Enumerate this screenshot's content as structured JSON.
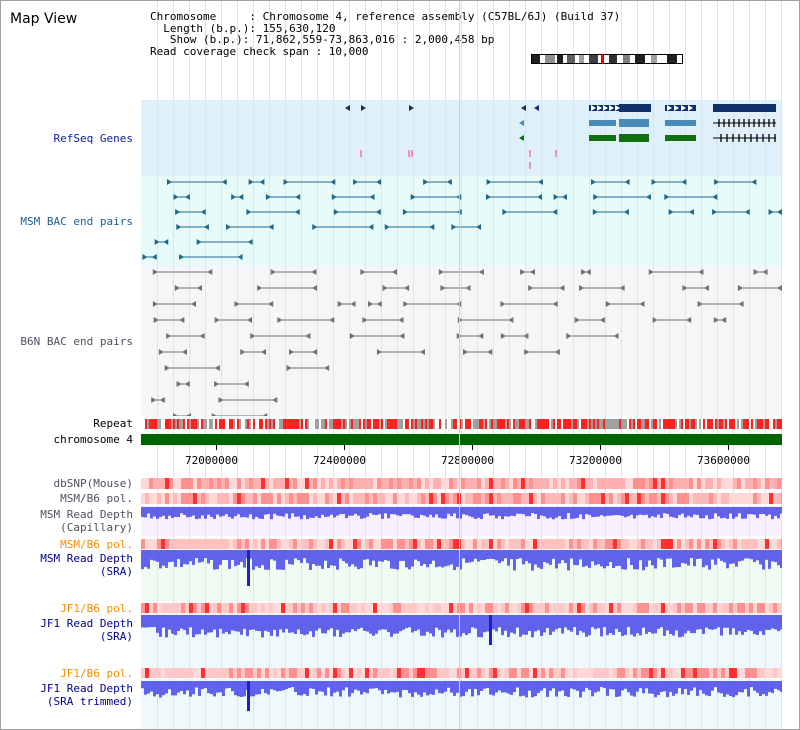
{
  "header": {
    "title": "Map View",
    "chromosome_key": "Chromosome     ",
    "chromosome_val": ": Chromosome 4, reference assembly (C57BL/6J) (Build 37)",
    "length_key": "  Length (b.p.)",
    "length_val": ": 155,630,120",
    "show_key": "   Show (b.p.)",
    "show_val": ": 71,862,559-73,863,016 : 2,000,458 bp",
    "coverage_line": "Read coverage check span : 10,000"
  },
  "tracks": {
    "refseq": "RefSeq Genes",
    "msm_bac": "MSM BAC end pairs",
    "b6n_bac": "B6N BAC end pairs",
    "repeat": "Repeat",
    "chromosome": "chromosome 4",
    "dbsnp": "dbSNP(Mouse)",
    "msm_b6_pol_1": "MSM/B6 pol.",
    "msm_depth_cap_1": "MSM Read Depth",
    "msm_depth_cap_2": "(Capillary)",
    "msm_b6_pol_2": "MSM/B6 pol.",
    "msm_depth_sra_1": "MSM Read Depth",
    "msm_depth_sra_2": "(SRA)",
    "jf1_b6_pol_1": "JF1/B6 pol.",
    "jf1_depth_sra_1": "JF1 Read Depth",
    "jf1_depth_sra_2": "(SRA)",
    "jf1_b6_pol_2": "JF1/B6 pol.",
    "jf1_depth_trim_1": "JF1 Read Depth",
    "jf1_depth_trim_2": "(SRA trimmed)"
  },
  "axis": {
    "ticks": [
      "72000000",
      "72400000",
      "72800000",
      "73200000",
      "73600000"
    ]
  },
  "colors": {
    "refseq_bg": "#dff0fb",
    "msm_bac_bg": "#e8fbfb",
    "b6n_bg": "#f6f6f8",
    "gene_navy": "#10306a",
    "gene_steel": "#4a8ab8",
    "gene_green": "#107010",
    "bac_teal": "#206a88",
    "bac_gray": "#707070",
    "chrom_green": "#006400",
    "depth_blue": "#4848e8"
  }
}
